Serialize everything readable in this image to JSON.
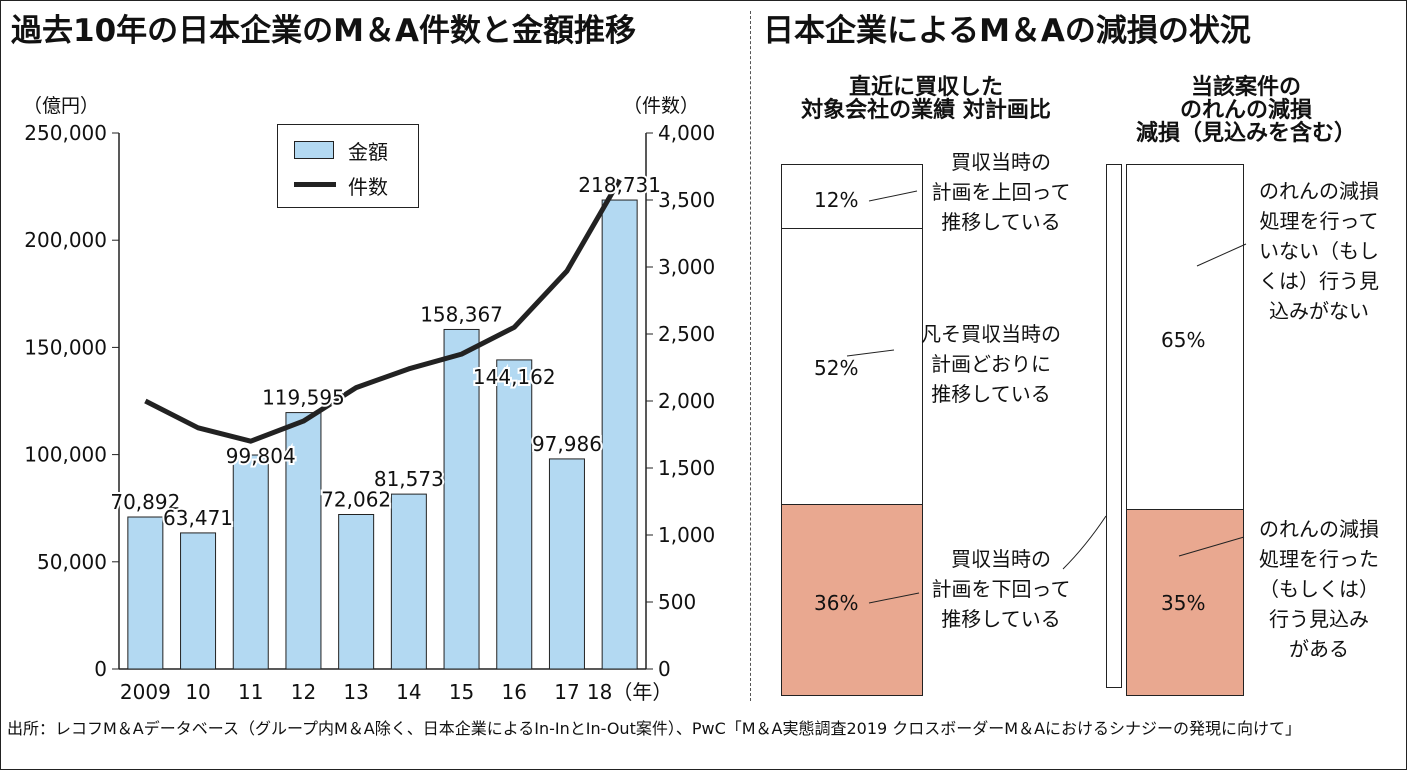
{
  "left": {
    "title": "過去10年の日本企業のM＆A件数と金額推移",
    "unit_left": "（億円）",
    "unit_right": "（件数）",
    "legend": {
      "amount": "金額",
      "count": "件数"
    }
  },
  "right": {
    "title": "日本企業によるM＆Aの減損の状況",
    "bar1": {
      "title": "直近に買収した\n対象会社の業績 対計画比",
      "segments": [
        {
          "pct_label": "12%",
          "value": 12,
          "annotation": "買収当時の\n計画を上回って\n推移している",
          "color": "#ffffff"
        },
        {
          "pct_label": "52%",
          "value": 52,
          "annotation": "凡そ買収当時の\n計画どおりに\n推移している",
          "color": "#ffffff"
        },
        {
          "pct_label": "36%",
          "value": 36,
          "annotation": "買収当時の\n計画を下回って\n推移している",
          "color": "#e9a890"
        }
      ]
    },
    "bar2": {
      "title": "当該案件の\nのれんの減損\n減損（見込みを含む）",
      "segments": [
        {
          "pct_label": "65%",
          "value": 65,
          "annotation": "のれんの減損\n処理を行って\nいない（もし\nくは）行う見\n込みがない",
          "color": "#ffffff"
        },
        {
          "pct_label": "35%",
          "value": 35,
          "annotation": "のれんの減損\n処理を行った\n（もしくは）\n行う見込み\nがある",
          "color": "#e9a890"
        }
      ]
    }
  },
  "source_note": "出所：レコフM＆Aデータベース（グループ内M＆A除く、日本企業によるIn-InとIn-Out案件）、PwC「M＆A実態調査2019 クロスボーダーM＆Aにおけるシナジーの発現に向けて」",
  "colors": {
    "bar": "#b3d9f2",
    "line": "#222222",
    "impair": "#e9a890"
  },
  "chart_data": {
    "type": "bar",
    "categories": [
      "2009",
      "10",
      "11",
      "12",
      "13",
      "14",
      "15",
      "16",
      "17",
      "18（年）"
    ],
    "series": [
      {
        "name": "金額",
        "type": "bar",
        "axis": "left",
        "values": [
          70892,
          63471,
          99804,
          119595,
          72062,
          81573,
          158367,
          144162,
          97986,
          218731
        ],
        "labels": [
          "70,892",
          "63,471",
          "99,804",
          "119,595",
          "72,062",
          "81,573",
          "158,367",
          "144,162",
          "97,986",
          "218,731"
        ]
      },
      {
        "name": "件数",
        "type": "line",
        "axis": "right",
        "values": [
          2000,
          1800,
          1700,
          1850,
          2100,
          2240,
          2350,
          2550,
          2970,
          3650
        ]
      }
    ],
    "ylim_left": [
      0,
      250000
    ],
    "ylim_right": [
      0,
      4000
    ],
    "yticks_left": [
      "0",
      "50,000",
      "100,000",
      "150,000",
      "200,000",
      "250,000"
    ],
    "yticks_right": [
      "0",
      "500",
      "1,000",
      "1,500",
      "2,000",
      "2,500",
      "3,000",
      "3,500",
      "4,000"
    ],
    "legend_position": "top-left",
    "grid": false
  }
}
